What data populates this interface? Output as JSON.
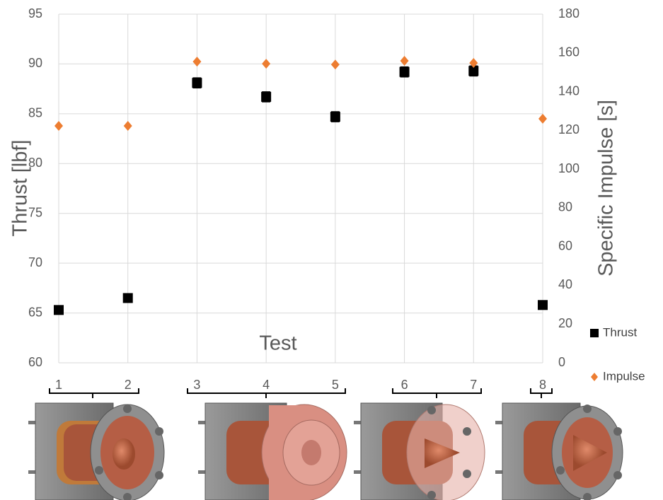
{
  "chart_data": {
    "type": "scatter",
    "x_label": "Test",
    "y_label": "Thrust [lbf]",
    "y2_label": "Specific Impulse [s]",
    "x": [
      1,
      2,
      3,
      4,
      5,
      6,
      7,
      8
    ],
    "xlim": [
      1,
      8
    ],
    "xticks": [
      1,
      2,
      3,
      4,
      5,
      6,
      7,
      8
    ],
    "ylim": [
      60,
      95
    ],
    "yticks": [
      60,
      65,
      70,
      75,
      80,
      85,
      90,
      95
    ],
    "y2lim": [
      0,
      180
    ],
    "y2ticks": [
      0,
      20,
      40,
      60,
      80,
      100,
      120,
      140,
      160,
      180
    ],
    "grid": true,
    "legend": "right",
    "series": [
      {
        "name": "Thrust",
        "color": "#000000",
        "marker": "square",
        "axis": "y",
        "values": [
          65.3,
          66.5,
          88.1,
          86.7,
          84.7,
          89.2,
          89.3,
          65.8
        ],
        "errors": [
          0.4,
          0.4,
          0.5,
          0.5,
          0.5,
          0.5,
          0.5,
          0.4
        ]
      },
      {
        "name": "Impulse",
        "color": "#ed7d31",
        "marker": "diamond",
        "axis": "y2",
        "values": [
          122.3,
          122.3,
          155.5,
          154.4,
          154,
          155.9,
          154.8,
          126
        ]
      }
    ]
  }
}
